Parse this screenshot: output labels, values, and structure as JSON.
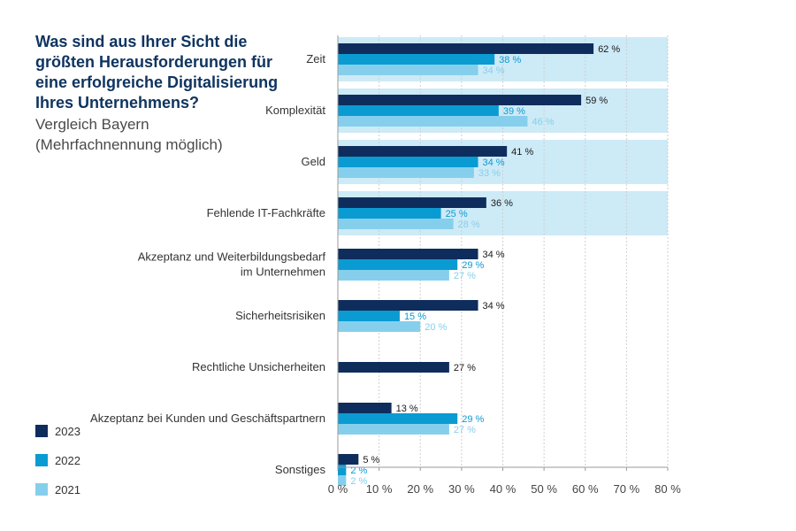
{
  "title_lines": [
    "Was sind aus Ihrer Sicht die",
    "größten Herausforderungen für",
    "eine erfolgreiche Digitalisierung",
    "Ihres Unternehmens?"
  ],
  "subtitle_lines": [
    "Vergleich Bayern",
    "(Mehrfachnennung möglich)"
  ],
  "colors": {
    "2023": "#0f2d5c",
    "2022": "#0a9bd2",
    "2021": "#86cfec",
    "highlight": "#cdeaf7",
    "axis": "#9a9a9a",
    "category_text": "#333333"
  },
  "chart_data": {
    "type": "bar",
    "orientation": "horizontal",
    "categories": [
      [
        "Zeit"
      ],
      [
        "Komplexität"
      ],
      [
        "Geld"
      ],
      [
        "Fehlende IT-Fachkräfte"
      ],
      [
        "Akzeptanz und Weiterbildungsbedarf",
        "im Unternehmen"
      ],
      [
        "Sicherheitsrisiken"
      ],
      [
        "Rechtliche Unsicherheiten"
      ],
      [
        "Akzeptanz bei Kunden und Geschäftspartnern"
      ],
      [
        "Sonstiges"
      ]
    ],
    "series": [
      {
        "name": "2023",
        "values": [
          62,
          59,
          41,
          36,
          34,
          34,
          27,
          13,
          5
        ]
      },
      {
        "name": "2022",
        "values": [
          38,
          39,
          34,
          25,
          29,
          15,
          null,
          29,
          2
        ]
      },
      {
        "name": "2021",
        "values": [
          34,
          46,
          33,
          28,
          27,
          20,
          null,
          27,
          2
        ]
      }
    ],
    "value_suffix": " %",
    "highlighted_categories": [
      0,
      1,
      2,
      3
    ],
    "xlim": [
      0,
      80
    ],
    "xticks": [
      0,
      10,
      20,
      30,
      40,
      50,
      60,
      70,
      80
    ],
    "xtick_labels": [
      "0 %",
      "10 %",
      "20 %",
      "30 %",
      "40 %",
      "50 %",
      "60 %",
      "70 %",
      "80 %"
    ],
    "legend_position": "bottom-left",
    "grid": true
  }
}
